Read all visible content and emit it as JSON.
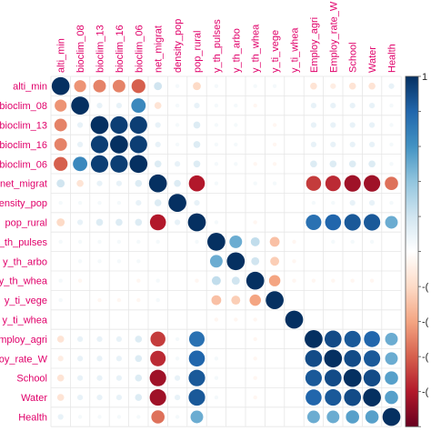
{
  "chart_data": {
    "type": "heatmap",
    "style": "corrplot-circle",
    "variables": [
      "alti_min",
      "bioclim_08",
      "bioclim_13",
      "bioclim_16",
      "bioclim_06",
      "net_migrat",
      "density_pop",
      "pop_rural",
      "y_th_pulses",
      "y_th_arbo",
      "y_th_whea",
      "y_ti_vege",
      "y_ti_whea",
      "Employ_agri",
      "Employ_rate_W",
      "School",
      "Water",
      "Health"
    ],
    "column_labels": [
      "alti_min",
      "bioclim_08",
      "bioclim_13",
      "bioclim_16",
      "bioclim_06",
      "net_migrat",
      "density_pop",
      "pop_rural",
      "y_th_pulses",
      "y_th_arbo",
      "y_th_whea",
      "y_ti_vege",
      "y_ti_whea",
      "Employ_agri",
      "Employ_rate_W",
      "School",
      "Water",
      "Health"
    ],
    "row_labels": [
      "alti_min",
      "bioclim_08",
      "bioclim_13",
      "bioclim_16",
      "bioclim_06",
      "net_migrat",
      "density_pop",
      "pop_rural",
      "y_th_pulses",
      "y_th_arbo",
      "y_th_whea",
      "y_ti_vege",
      "y_ti_whea",
      "Employ_agri",
      "Employ_rate_W",
      "School",
      "Water",
      "Health"
    ],
    "matrix": [
      [
        1.0,
        -0.45,
        -0.5,
        -0.5,
        -0.6,
        0.2,
        0.05,
        -0.2,
        0.05,
        0.0,
        0.05,
        0.05,
        0.0,
        -0.15,
        -0.1,
        -0.15,
        -0.15,
        0.1
      ],
      [
        -0.45,
        1.0,
        0.1,
        0.1,
        0.65,
        -0.15,
        0.05,
        0.1,
        0.05,
        0.05,
        -0.05,
        0.0,
        0.0,
        0.1,
        0.1,
        0.1,
        0.1,
        0.05
      ],
      [
        -0.5,
        0.1,
        1.0,
        0.95,
        0.95,
        0.1,
        0.05,
        0.15,
        0.05,
        0.05,
        0.0,
        -0.05,
        0.0,
        0.1,
        0.1,
        0.1,
        0.1,
        0.05
      ],
      [
        -0.5,
        0.1,
        0.95,
        1.0,
        0.95,
        0.1,
        0.05,
        0.15,
        0.05,
        0.05,
        0.0,
        -0.05,
        0.0,
        0.1,
        0.1,
        0.1,
        0.1,
        0.05
      ],
      [
        -0.6,
        0.65,
        0.95,
        0.95,
        1.0,
        0.15,
        0.1,
        0.15,
        0.05,
        0.05,
        -0.05,
        -0.05,
        0.0,
        0.15,
        0.15,
        0.15,
        0.15,
        0.05
      ],
      [
        0.2,
        -0.15,
        0.1,
        0.1,
        0.15,
        1.0,
        0.15,
        -0.8,
        0.05,
        0.0,
        0.05,
        0.05,
        0.0,
        -0.7,
        -0.75,
        -0.85,
        -0.85,
        -0.55
      ],
      [
        0.05,
        0.05,
        0.05,
        0.05,
        0.1,
        0.15,
        1.0,
        0.1,
        0.0,
        0.0,
        0.0,
        0.0,
        0.0,
        0.05,
        0.05,
        0.1,
        0.1,
        0.05
      ],
      [
        -0.2,
        0.1,
        0.15,
        0.15,
        0.15,
        -0.8,
        0.1,
        1.0,
        0.05,
        0.0,
        -0.05,
        0.0,
        0.0,
        0.75,
        0.8,
        0.85,
        0.85,
        0.5
      ],
      [
        0.05,
        0.05,
        0.05,
        0.05,
        0.05,
        0.05,
        0.0,
        0.05,
        1.0,
        0.5,
        0.25,
        -0.3,
        -0.05,
        0.0,
        0.05,
        0.05,
        0.05,
        0.0
      ],
      [
        0.0,
        0.05,
        0.05,
        0.05,
        0.05,
        0.0,
        0.0,
        0.0,
        0.5,
        1.0,
        0.2,
        -0.25,
        -0.05,
        0.0,
        0.0,
        0.0,
        0.0,
        0.0
      ],
      [
        0.05,
        -0.05,
        0.0,
        0.0,
        -0.05,
        0.05,
        0.0,
        -0.05,
        0.25,
        0.2,
        1.0,
        -0.4,
        -0.05,
        -0.05,
        -0.05,
        -0.05,
        -0.05,
        0.0
      ],
      [
        0.05,
        0.0,
        -0.05,
        -0.05,
        -0.05,
        0.05,
        0.0,
        0.0,
        -0.3,
        -0.25,
        -0.4,
        1.0,
        0.0,
        0.0,
        0.0,
        0.0,
        0.0,
        0.0
      ],
      [
        0.0,
        0.0,
        0.0,
        0.0,
        0.0,
        0.0,
        0.0,
        0.0,
        -0.05,
        -0.05,
        -0.05,
        0.0,
        1.0,
        0.0,
        0.0,
        0.0,
        0.0,
        0.0
      ],
      [
        -0.15,
        0.1,
        0.1,
        0.1,
        0.15,
        -0.7,
        0.05,
        0.75,
        0.0,
        0.0,
        -0.05,
        0.0,
        0.0,
        1.0,
        0.9,
        0.85,
        0.8,
        0.5
      ],
      [
        -0.1,
        0.1,
        0.1,
        0.1,
        0.15,
        -0.75,
        0.05,
        0.8,
        0.05,
        0.0,
        -0.05,
        0.0,
        0.0,
        0.9,
        1.0,
        0.9,
        0.85,
        0.5
      ],
      [
        -0.15,
        0.1,
        0.1,
        0.1,
        0.15,
        -0.85,
        0.1,
        0.85,
        0.05,
        0.0,
        -0.05,
        0.0,
        0.0,
        0.85,
        0.9,
        1.0,
        0.9,
        0.55
      ],
      [
        -0.15,
        0.1,
        0.1,
        0.1,
        0.15,
        -0.85,
        0.1,
        0.85,
        0.05,
        0.0,
        -0.05,
        0.0,
        0.0,
        0.8,
        0.85,
        0.9,
        1.0,
        0.55
      ],
      [
        0.1,
        0.05,
        0.05,
        0.05,
        0.05,
        -0.55,
        0.05,
        0.5,
        0.0,
        0.0,
        0.0,
        0.0,
        0.0,
        0.5,
        0.5,
        0.55,
        0.55,
        1.0
      ]
    ],
    "colorbar_ticks": [
      "1",
      "",
      "",
      "",
      "",
      "",
      "-(",
      "-(",
      "-(",
      "-(",
      ""
    ],
    "color_scale": [
      "#67001f",
      "#b2182b",
      "#d6604d",
      "#f4a582",
      "#fddbc7",
      "#ffffff",
      "#d1e5f0",
      "#92c5de",
      "#4393c3",
      "#2166ac",
      "#053061"
    ],
    "range": [
      -1,
      1
    ],
    "grid": true,
    "legend_placement": "right"
  }
}
